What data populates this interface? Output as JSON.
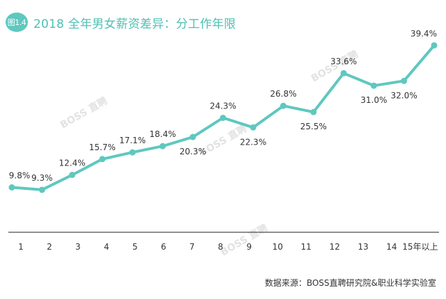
{
  "header": {
    "figure_label": "图1.4",
    "title": "2018 全年男女薪资差异：分工作年限"
  },
  "source": "数据来源：BOSS直聘研究院&职业科学实验室",
  "watermark": "BOSS 直聘",
  "colors": {
    "accent": "#5fc8bf",
    "line": "#5fc8bf",
    "axis": "#222222",
    "text": "#333333"
  },
  "chart_data": {
    "type": "line",
    "categories": [
      "1",
      "2",
      "3",
      "4",
      "5",
      "6",
      "7",
      "8",
      "9",
      "10",
      "11",
      "12",
      "13",
      "14",
      "15年以上"
    ],
    "values": [
      9.8,
      9.3,
      12.4,
      15.7,
      17.1,
      18.4,
      20.3,
      24.3,
      22.3,
      26.8,
      25.5,
      33.6,
      31.0,
      32.0,
      39.4
    ],
    "data_labels": [
      "9.8%",
      "9.3%",
      "12.4%",
      "15.7%",
      "17.1%",
      "18.4%",
      "20.3%",
      "24.3%",
      "22.3%",
      "26.8%",
      "25.5%",
      "33.6%",
      "31.0%",
      "32.0%",
      "39.4%"
    ],
    "label_positions": [
      "above",
      "above",
      "above",
      "above",
      "above",
      "above",
      "below",
      "above",
      "below",
      "above",
      "below",
      "above",
      "below",
      "below",
      "above"
    ],
    "title": "2018 全年男女薪资差异：分工作年限",
    "xlabel": "",
    "ylabel": "",
    "grid": false
  }
}
